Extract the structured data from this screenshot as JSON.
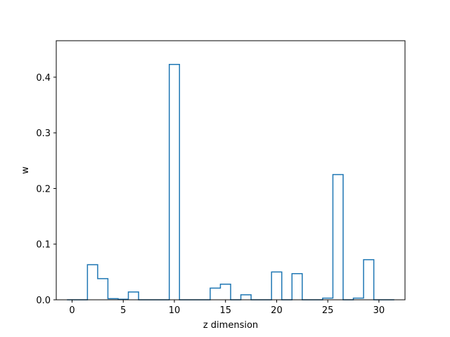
{
  "chart_data": {
    "type": "step-histogram",
    "xlabel": "z dimension",
    "ylabel": "w",
    "xlim": [
      -1.55,
      32.55
    ],
    "ylim": [
      0,
      0.4655
    ],
    "x_ticks": [
      0,
      5,
      10,
      15,
      20,
      25,
      30
    ],
    "y_ticks": [
      0.0,
      0.1,
      0.2,
      0.3,
      0.4
    ],
    "y_tick_labels": [
      "0.0",
      "0.1",
      "0.2",
      "0.3",
      "0.4"
    ],
    "grid": false,
    "bin_width": 1,
    "bins": [
      0,
      1,
      2,
      3,
      4,
      5,
      6,
      7,
      8,
      9,
      10,
      11,
      12,
      13,
      14,
      15,
      16,
      17,
      18,
      19,
      20,
      21,
      22,
      23,
      24,
      25,
      26,
      27,
      28,
      29,
      30,
      31
    ],
    "values": [
      0.0,
      0.0,
      0.063,
      0.038,
      0.002,
      0.001,
      0.014,
      0.0,
      0.0,
      0.0,
      0.423,
      0.0,
      0.0,
      0.0,
      0.021,
      0.028,
      0.0,
      0.009,
      0.0,
      0.0,
      0.05,
      0.0,
      0.047,
      0.0,
      0.0,
      0.003,
      0.225,
      0.0,
      0.003,
      0.072,
      0.0,
      0.0
    ],
    "color": "#1f77b4"
  }
}
